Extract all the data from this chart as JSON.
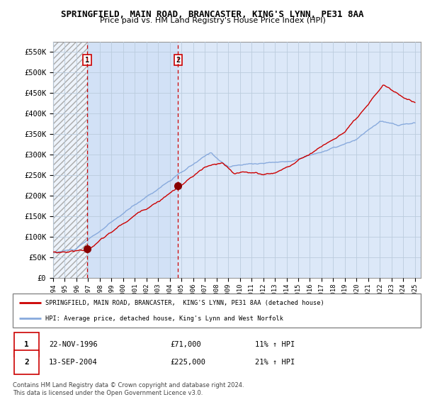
{
  "title": "SPRINGFIELD, MAIN ROAD, BRANCASTER, KING'S LYNN, PE31 8AA",
  "subtitle": "Price paid vs. HM Land Registry's House Price Index (HPI)",
  "ylabel_ticks": [
    "£0",
    "£50K",
    "£100K",
    "£150K",
    "£200K",
    "£250K",
    "£300K",
    "£350K",
    "£400K",
    "£450K",
    "£500K",
    "£550K"
  ],
  "ytick_values": [
    0,
    50000,
    100000,
    150000,
    200000,
    250000,
    300000,
    350000,
    400000,
    450000,
    500000,
    550000
  ],
  "ylim": [
    0,
    575000
  ],
  "xmin": 1994.0,
  "xmax": 2025.5,
  "sale1_x": 1996.9,
  "sale1_y": 71000,
  "sale2_x": 2004.71,
  "sale2_y": 225000,
  "red_line_color": "#cc0000",
  "blue_line_color": "#88aadd",
  "vline_color": "#cc0000",
  "grid_color": "#bbccdd",
  "background_color": "#dce8f8",
  "hatch_color": "#c8c8c8",
  "legend_label_red": "SPRINGFIELD, MAIN ROAD, BRANCASTER,  KING'S LYNN, PE31 8AA (detached house)",
  "legend_label_blue": "HPI: Average price, detached house, King's Lynn and West Norfolk",
  "sale1_date": "22-NOV-1996",
  "sale1_price": "£71,000",
  "sale1_hpi": "11% ↑ HPI",
  "sale2_date": "13-SEP-2004",
  "sale2_price": "£225,000",
  "sale2_hpi": "21% ↑ HPI",
  "footnote": "Contains HM Land Registry data © Crown copyright and database right 2024.\nThis data is licensed under the Open Government Licence v3.0.",
  "xticks": [
    1994,
    1995,
    1996,
    1997,
    1998,
    1999,
    2000,
    2001,
    2002,
    2003,
    2004,
    2005,
    2006,
    2007,
    2008,
    2009,
    2010,
    2011,
    2012,
    2013,
    2014,
    2015,
    2016,
    2017,
    2018,
    2019,
    2020,
    2021,
    2022,
    2023,
    2024,
    2025
  ]
}
